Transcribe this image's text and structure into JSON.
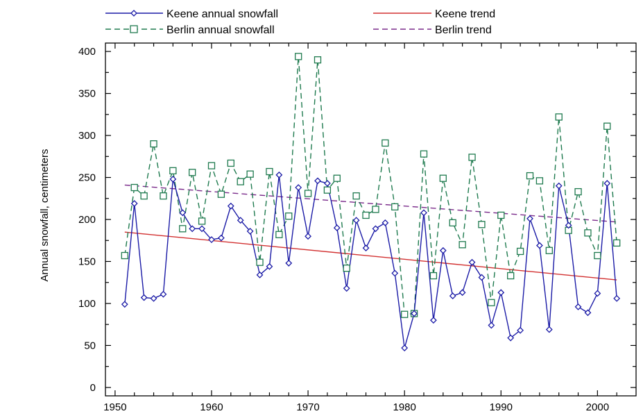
{
  "colors": {
    "keene": "#1a1aa6",
    "berlin": "#1e7a4e",
    "keene_trend": "#d23030",
    "berlin_trend": "#7a2a8a",
    "axis": "#000000",
    "background": "#ffffff"
  },
  "chart_data": {
    "type": "line",
    "title": "",
    "xlabel": "",
    "ylabel": "Annual snowfall, centimeters",
    "xlim": [
      1949,
      2004
    ],
    "ylim": [
      -10,
      410
    ],
    "xticks": [
      1950,
      1960,
      1970,
      1980,
      1990,
      2000
    ],
    "yticks": [
      0,
      50,
      100,
      150,
      200,
      250,
      300,
      350,
      400
    ],
    "grid": false,
    "legend_position": "top",
    "x": [
      1951,
      1952,
      1953,
      1954,
      1955,
      1956,
      1957,
      1958,
      1959,
      1960,
      1961,
      1962,
      1963,
      1964,
      1965,
      1966,
      1967,
      1968,
      1969,
      1970,
      1971,
      1972,
      1973,
      1974,
      1975,
      1976,
      1977,
      1978,
      1979,
      1980,
      1981,
      1982,
      1983,
      1984,
      1985,
      1986,
      1987,
      1988,
      1989,
      1990,
      1991,
      1992,
      1993,
      1994,
      1995,
      1996,
      1997,
      1998,
      1999,
      2000,
      2001,
      2002
    ],
    "series": [
      {
        "name": "Keene annual snowfall",
        "style": "solid",
        "marker": "diamond",
        "color": "#1a1aa6",
        "values": [
          99,
          219,
          107,
          106,
          111,
          248,
          208,
          189,
          189,
          176,
          178,
          216,
          199,
          186,
          134,
          144,
          253,
          148,
          238,
          180,
          246,
          243,
          190,
          118,
          199,
          166,
          189,
          196,
          136,
          47,
          88,
          208,
          80,
          163,
          109,
          113,
          149,
          131,
          74,
          113,
          59,
          68,
          201,
          169,
          69,
          240,
          193,
          96,
          89,
          112,
          243,
          106
        ]
      },
      {
        "name": "Berlin annual snowfall",
        "style": "dashed",
        "marker": "square",
        "color": "#1e7a4e",
        "values": [
          157,
          238,
          228,
          290,
          228,
          258,
          189,
          256,
          198,
          264,
          230,
          267,
          245,
          254,
          149,
          257,
          182,
          204,
          394,
          231,
          390,
          235,
          249,
          142,
          228,
          205,
          212,
          291,
          215,
          87,
          88,
          278,
          133,
          249,
          196,
          170,
          274,
          194,
          101,
          205,
          133,
          162,
          252,
          246,
          163,
          322,
          187,
          233,
          184,
          157,
          311,
          172
        ]
      },
      {
        "name": "Keene trend",
        "style": "solid",
        "marker": "none",
        "color": "#d23030",
        "x": [
          1951,
          2002
        ],
        "values": [
          185,
          128
        ]
      },
      {
        "name": "Berlin trend",
        "style": "dashed",
        "marker": "none",
        "color": "#7a2a8a",
        "x": [
          1951,
          2002
        ],
        "values": [
          241,
          197
        ]
      }
    ]
  }
}
